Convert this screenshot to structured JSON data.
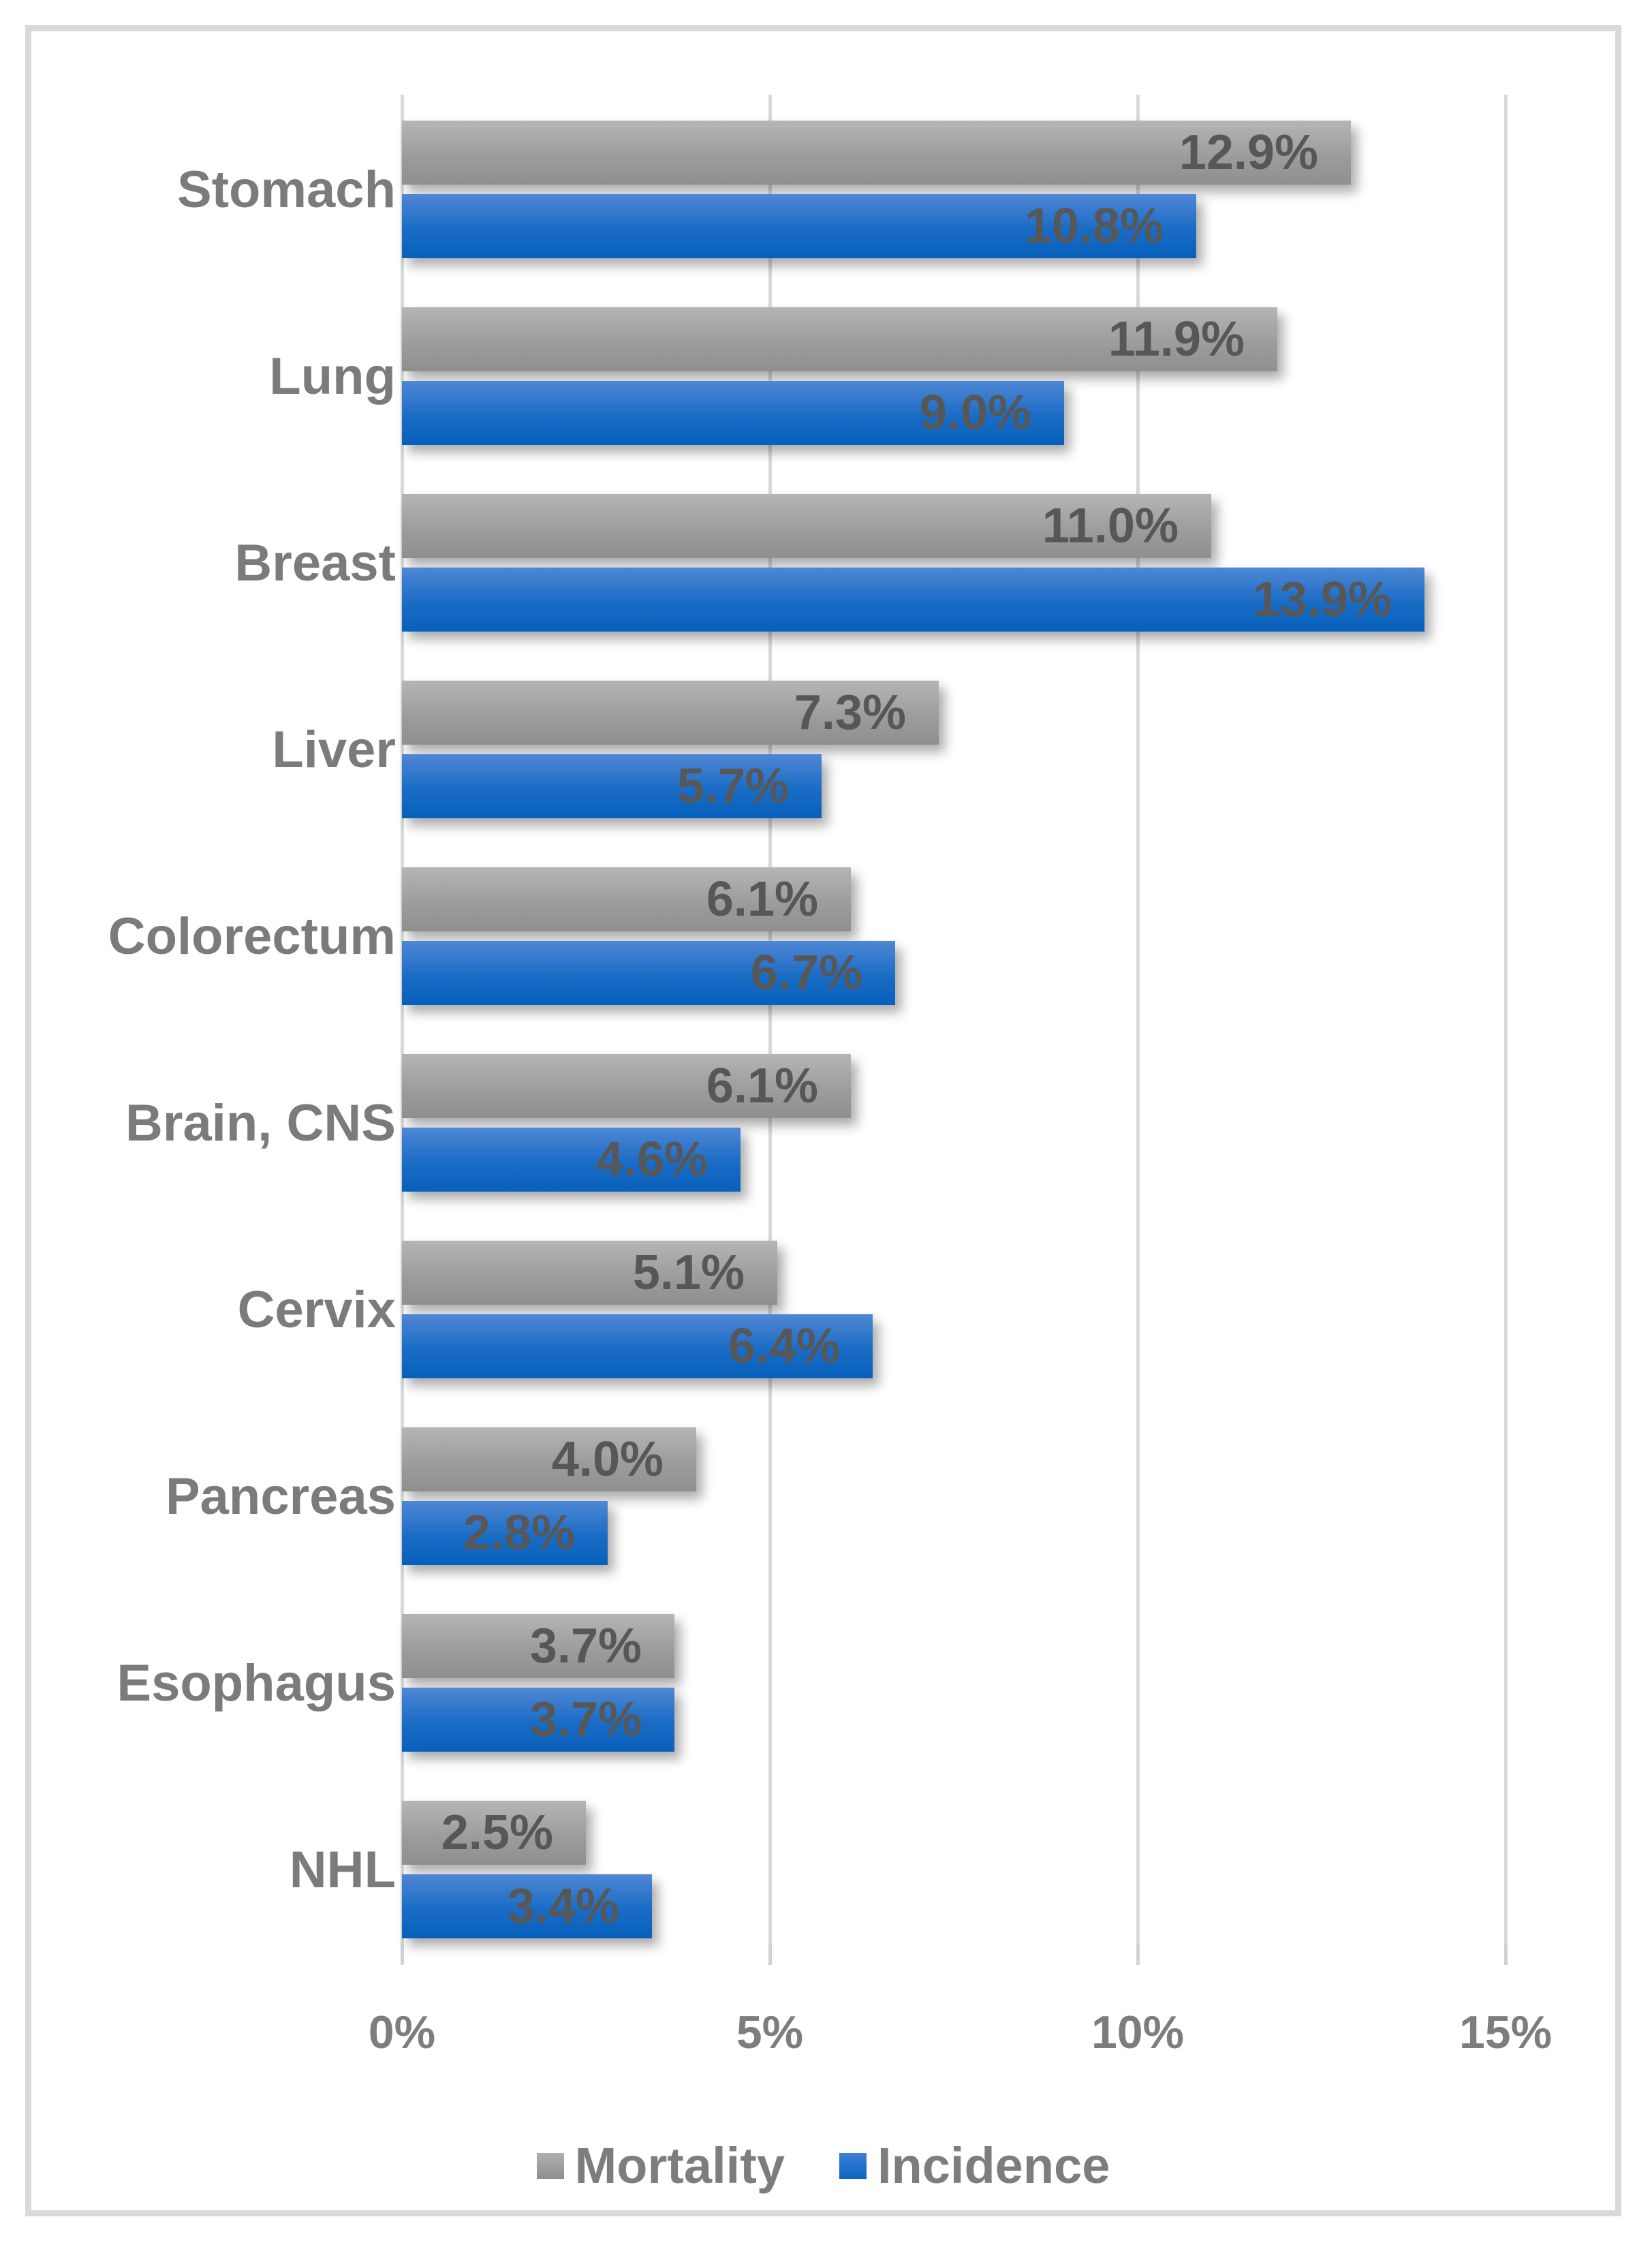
{
  "chart_data": {
    "type": "bar",
    "orientation": "horizontal",
    "title": "",
    "xlabel": "",
    "ylabel": "",
    "categories": [
      "Stomach",
      "Lung",
      "Breast",
      "Liver",
      "Colorectum",
      "Brain, CNS",
      "Cervix",
      "Pancreas",
      "Esophagus",
      "NHL"
    ],
    "series": [
      {
        "name": "Mortality",
        "color": "#9b9b9b",
        "values": [
          12.9,
          11.9,
          11.0,
          7.3,
          6.1,
          6.1,
          5.1,
          4.0,
          3.7,
          2.5
        ],
        "labels": [
          "12.9%",
          "11.9%",
          "11.0%",
          "7.3%",
          "6.1%",
          "6.1%",
          "5.1%",
          "4.0%",
          "3.7%",
          "2.5%"
        ]
      },
      {
        "name": "Incidence",
        "color": "#1a6cc5",
        "values": [
          10.8,
          9.0,
          13.9,
          5.7,
          6.7,
          4.6,
          6.4,
          2.8,
          3.7,
          3.4
        ],
        "labels": [
          "10.8%",
          "9.0%",
          "13.9%",
          "5.7%",
          "6.7%",
          "4.6%",
          "6.4%",
          "2.8%",
          "3.7%",
          "3.4%"
        ]
      }
    ],
    "x_ticks": [
      "0%",
      "5%",
      "10%",
      "15%"
    ],
    "x_tick_values": [
      0,
      5,
      10,
      15
    ],
    "xlim": [
      0,
      16.5
    ],
    "grid": true,
    "legend_position": "bottom",
    "value_labels_inside_bars": true
  },
  "legend": {
    "items": [
      {
        "label": "Mortality",
        "swatch": "gray-gradient-swatch"
      },
      {
        "label": "Incidence",
        "swatch": "blue-gradient-swatch"
      }
    ]
  },
  "colors": {
    "mortality_bar_top": "#b5b5b5",
    "mortality_bar_bottom": "#8f8f8f",
    "incidence_bar_top": "#4f87d4",
    "incidence_bar_bottom": "#0660bc",
    "value_label": "#575757",
    "category_label": "#7b7b7b",
    "axis_label": "#7d7d7d",
    "gridline": "#d9d9d9",
    "frame_border": "#d9d9d9"
  }
}
